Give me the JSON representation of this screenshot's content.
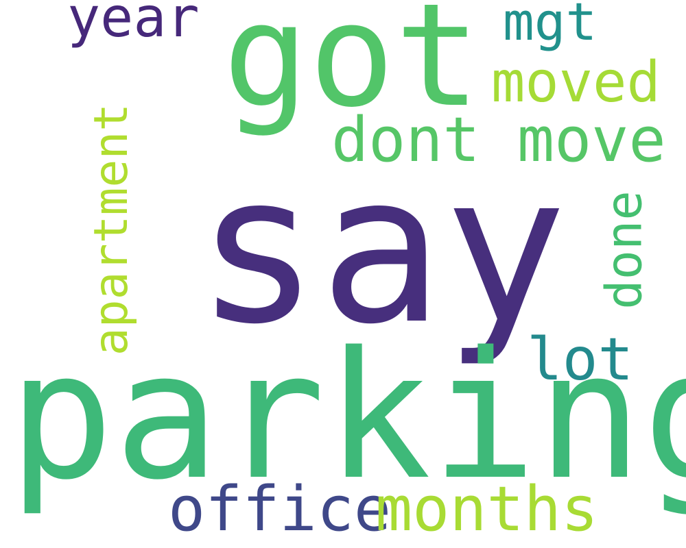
{
  "title": "",
  "words": [
    {
      "id": "say",
      "text": "say",
      "color": "#472f7d",
      "orientation": "horizontal"
    },
    {
      "id": "parking",
      "text": "parking",
      "color": "#3eb979",
      "orientation": "horizontal"
    },
    {
      "id": "got",
      "text": "got",
      "color": "#52c569",
      "orientation": "horizontal"
    },
    {
      "id": "dont_move",
      "text": "dont move",
      "color": "#56c667",
      "orientation": "horizontal"
    },
    {
      "id": "year",
      "text": "year",
      "color": "#46287a",
      "orientation": "horizontal"
    },
    {
      "id": "mgt",
      "text": "mgt",
      "color": "#21918c",
      "orientation": "horizontal"
    },
    {
      "id": "moved",
      "text": "moved",
      "color": "#a5db36",
      "orientation": "horizontal"
    },
    {
      "id": "lot",
      "text": "lot",
      "color": "#238a8d",
      "orientation": "horizontal"
    },
    {
      "id": "office",
      "text": "office",
      "color": "#3f4889",
      "orientation": "horizontal"
    },
    {
      "id": "months",
      "text": "months",
      "color": "#a8db34",
      "orientation": "horizontal"
    },
    {
      "id": "apartment",
      "text": "apartment",
      "color": "#b0dd2f",
      "orientation": "vertical"
    },
    {
      "id": "done",
      "text": "done",
      "color": "#44bf70",
      "orientation": "vertical"
    }
  ]
}
